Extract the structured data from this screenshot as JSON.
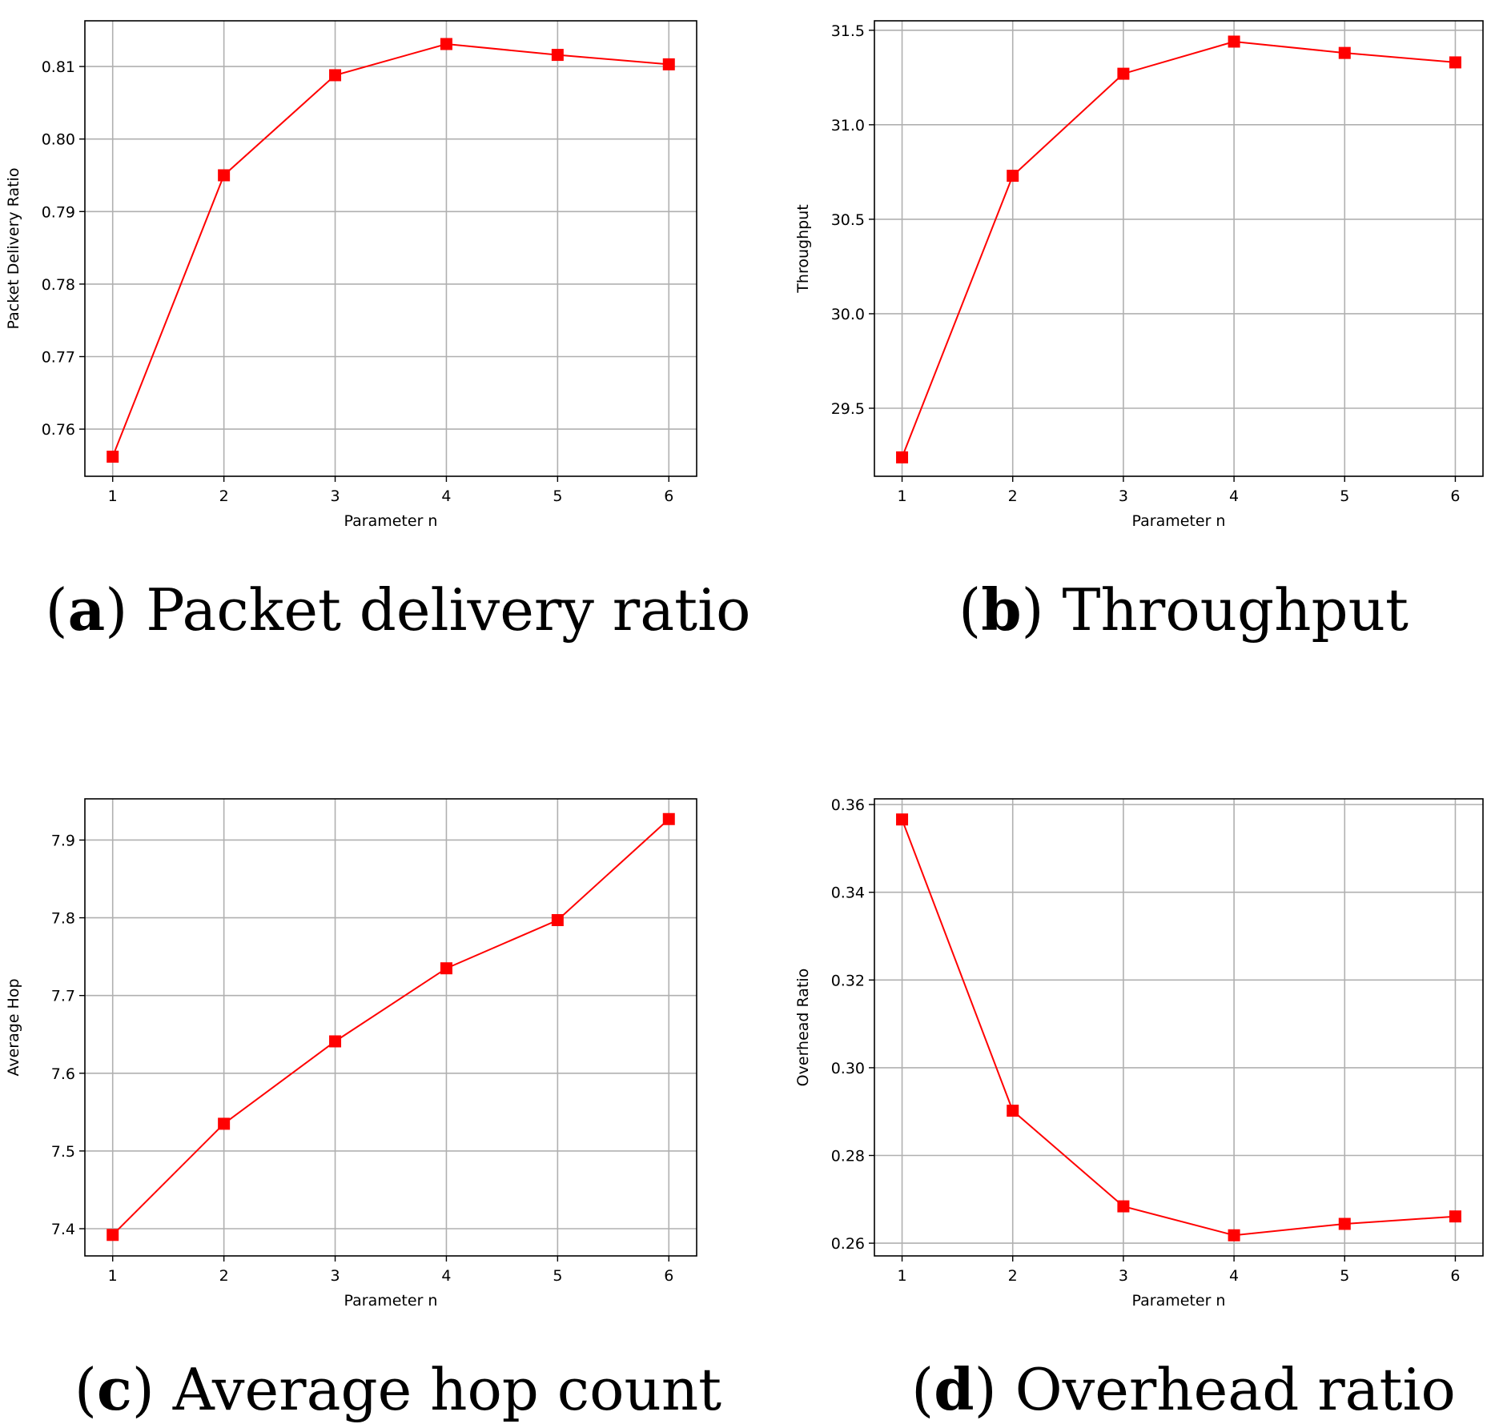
{
  "chart_data": [
    {
      "type": "line",
      "caption_letter": "a",
      "caption_title": "Packet delivery ratio",
      "xlabel": "Parameter n",
      "ylabel": "Packet Delivery Ratio",
      "x": [
        1,
        2,
        3,
        4,
        5,
        6
      ],
      "values": [
        0.7562,
        0.795,
        0.8088,
        0.8131,
        0.8116,
        0.8103
      ],
      "xlim": [
        0.75,
        6.25
      ],
      "ylim": [
        0.7535,
        0.8163
      ],
      "yticks": [
        0.76,
        0.77,
        0.78,
        0.79,
        0.8,
        0.81
      ],
      "ytick_decimals": 2,
      "grid": true,
      "color": "#ff0000",
      "marker": "square"
    },
    {
      "type": "line",
      "caption_letter": "b",
      "caption_title": "Throughput",
      "xlabel": "Parameter n",
      "ylabel": "Throughput",
      "x": [
        1,
        2,
        3,
        4,
        5,
        6
      ],
      "values": [
        29.24,
        30.73,
        31.27,
        31.44,
        31.38,
        31.33
      ],
      "xlim": [
        0.75,
        6.25
      ],
      "ylim": [
        29.14,
        31.55
      ],
      "yticks": [
        29.5,
        30.0,
        30.5,
        31.0,
        31.5
      ],
      "ytick_decimals": 1,
      "grid": true,
      "color": "#ff0000",
      "marker": "square"
    },
    {
      "type": "line",
      "caption_letter": "c",
      "caption_title": "Average hop count",
      "xlabel": "Parameter n",
      "ylabel": "Average Hop",
      "x": [
        1,
        2,
        3,
        4,
        5,
        6
      ],
      "values": [
        7.392,
        7.535,
        7.641,
        7.735,
        7.797,
        7.927
      ],
      "xlim": [
        0.75,
        6.25
      ],
      "ylim": [
        7.365,
        7.953
      ],
      "yticks": [
        7.4,
        7.5,
        7.6,
        7.7,
        7.8,
        7.9
      ],
      "ytick_decimals": 1,
      "grid": true,
      "color": "#ff0000",
      "marker": "square"
    },
    {
      "type": "line",
      "caption_letter": "d",
      "caption_title": "Overhead ratio",
      "xlabel": "Parameter n",
      "ylabel": "Overhead Ratio",
      "x": [
        1,
        2,
        3,
        4,
        5,
        6
      ],
      "values": [
        0.3566,
        0.2902,
        0.2684,
        0.2618,
        0.2644,
        0.2661
      ],
      "xlim": [
        0.75,
        6.25
      ],
      "ylim": [
        0.2571,
        0.3613
      ],
      "yticks": [
        0.26,
        0.28,
        0.3,
        0.32,
        0.34,
        0.36
      ],
      "ytick_decimals": 2,
      "grid": true,
      "color": "#ff0000",
      "marker": "square"
    }
  ]
}
